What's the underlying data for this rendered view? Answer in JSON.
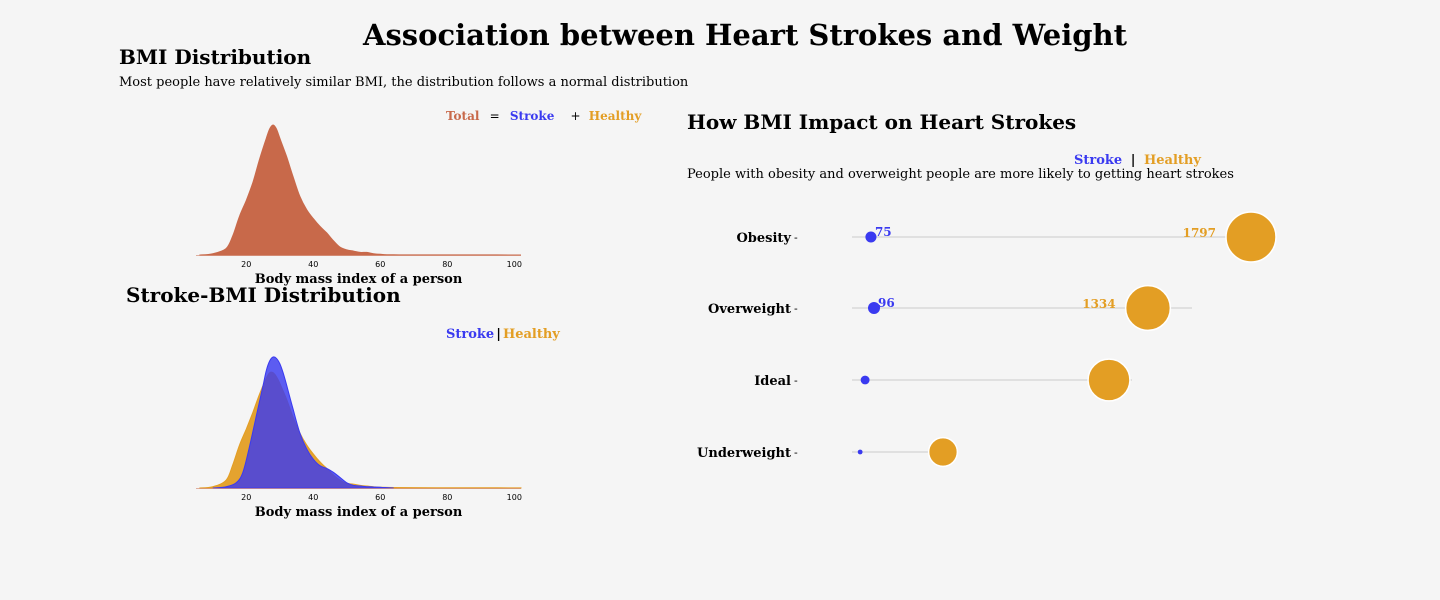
{
  "title": "Association between Heart Strokes and Weight",
  "bmi_section": {
    "title": "BMI Distribution",
    "subtitle": "Most people have relatively similar BMI, the distribution follows a normal distribution",
    "legend": {
      "total": "Total",
      "eq": "=",
      "stroke": "Stroke",
      "plus": "+",
      "healthy": "Healthy"
    }
  },
  "stroke_section": {
    "title": "Stroke-BMI Distribution",
    "legend": {
      "stroke": "Stroke",
      "sep": "|",
      "healthy": "Healthy"
    }
  },
  "impact_section": {
    "title": "How BMI Impact on Heart Strokes",
    "subtitle": "People with obesity and overweight people are more likely to getting heart strokes",
    "legend": {
      "stroke": "Stroke",
      "sep": "|",
      "healthy": "Healthy"
    }
  },
  "colors": {
    "total": "#c8694a",
    "stroke": "#3a3af0",
    "healthy": "#e39e24",
    "background": "#f5f5f5",
    "overlap": "#5a4fd6"
  },
  "chart_data": [
    {
      "type": "area",
      "name": "bmi-distribution",
      "xlabel": "Body mass index of a person",
      "xlim": [
        5,
        102
      ],
      "xticks": [
        20,
        40,
        60,
        80,
        100
      ],
      "series": [
        {
          "name": "Total",
          "x": [
            6,
            10,
            14,
            16,
            18,
            20,
            22,
            24,
            26,
            27,
            28,
            29,
            30,
            32,
            34,
            36,
            38,
            40,
            42,
            44,
            46,
            48,
            50,
            52,
            54,
            56,
            58,
            60,
            62,
            66,
            70,
            80,
            90,
            102
          ],
          "y": [
            0,
            0.01,
            0.05,
            0.15,
            0.3,
            0.42,
            0.56,
            0.74,
            0.9,
            0.97,
            1.0,
            0.97,
            0.9,
            0.76,
            0.6,
            0.45,
            0.35,
            0.28,
            0.22,
            0.17,
            0.11,
            0.06,
            0.04,
            0.03,
            0.02,
            0.02,
            0.01,
            0.005,
            0.002,
            0.001,
            0.001,
            0.001,
            0.001,
            0
          ]
        }
      ]
    },
    {
      "type": "area",
      "name": "stroke-bmi-distribution",
      "xlabel": "Body mass index of a person",
      "xlim": [
        5,
        102
      ],
      "xticks": [
        20,
        40,
        60,
        80,
        100
      ],
      "series": [
        {
          "name": "Healthy",
          "x": [
            6,
            10,
            14,
            16,
            18,
            20,
            22,
            24,
            26,
            27,
            28,
            29,
            30,
            32,
            34,
            36,
            38,
            40,
            42,
            44,
            46,
            48,
            50,
            52,
            54,
            56,
            58,
            60,
            64,
            70,
            80,
            90,
            102
          ],
          "y": [
            0,
            0.01,
            0.06,
            0.18,
            0.33,
            0.45,
            0.58,
            0.72,
            0.84,
            0.88,
            0.88,
            0.85,
            0.8,
            0.68,
            0.54,
            0.42,
            0.33,
            0.26,
            0.2,
            0.15,
            0.1,
            0.06,
            0.035,
            0.03,
            0.02,
            0.015,
            0.01,
            0.006,
            0.004,
            0.003,
            0.002,
            0.002,
            0.001
          ]
        },
        {
          "name": "Stroke",
          "x": [
            10,
            14,
            17,
            19,
            21,
            23,
            25,
            26,
            27,
            28,
            29,
            30,
            31,
            32,
            34,
            36,
            38,
            40,
            42,
            44,
            46,
            48,
            50,
            52,
            54,
            56,
            58,
            60,
            62,
            64
          ],
          "y": [
            0,
            0.01,
            0.04,
            0.12,
            0.32,
            0.55,
            0.78,
            0.9,
            0.97,
            1.0,
            0.99,
            0.95,
            0.88,
            0.79,
            0.6,
            0.42,
            0.3,
            0.22,
            0.17,
            0.15,
            0.12,
            0.08,
            0.04,
            0.02,
            0.015,
            0.01,
            0.008,
            0.005,
            0.003,
            0
          ]
        }
      ]
    },
    {
      "type": "scatter",
      "name": "bmi-impact",
      "categories": [
        "Obesity",
        "Overweight",
        "Ideal",
        "Underweight"
      ],
      "series": [
        {
          "name": "Stroke",
          "values": [
            75,
            96,
            35,
            1
          ],
          "labels": [
            "75",
            "96",
            "",
            ""
          ]
        },
        {
          "name": "Healthy",
          "values": [
            1797,
            1334,
            1106,
            349
          ],
          "labels": [
            "1797",
            "1334",
            "",
            ""
          ]
        }
      ],
      "lines": [
        {
          "category": "Obesity",
          "from": 0.08,
          "to": 1.0
        },
        {
          "category": "Overweight",
          "from": 0.08,
          "to": 0.85
        },
        {
          "category": "Ideal",
          "from": 0.08,
          "to": 0.7
        },
        {
          "category": "Underweight",
          "from": 0.06,
          "to": 0.25
        }
      ]
    }
  ]
}
